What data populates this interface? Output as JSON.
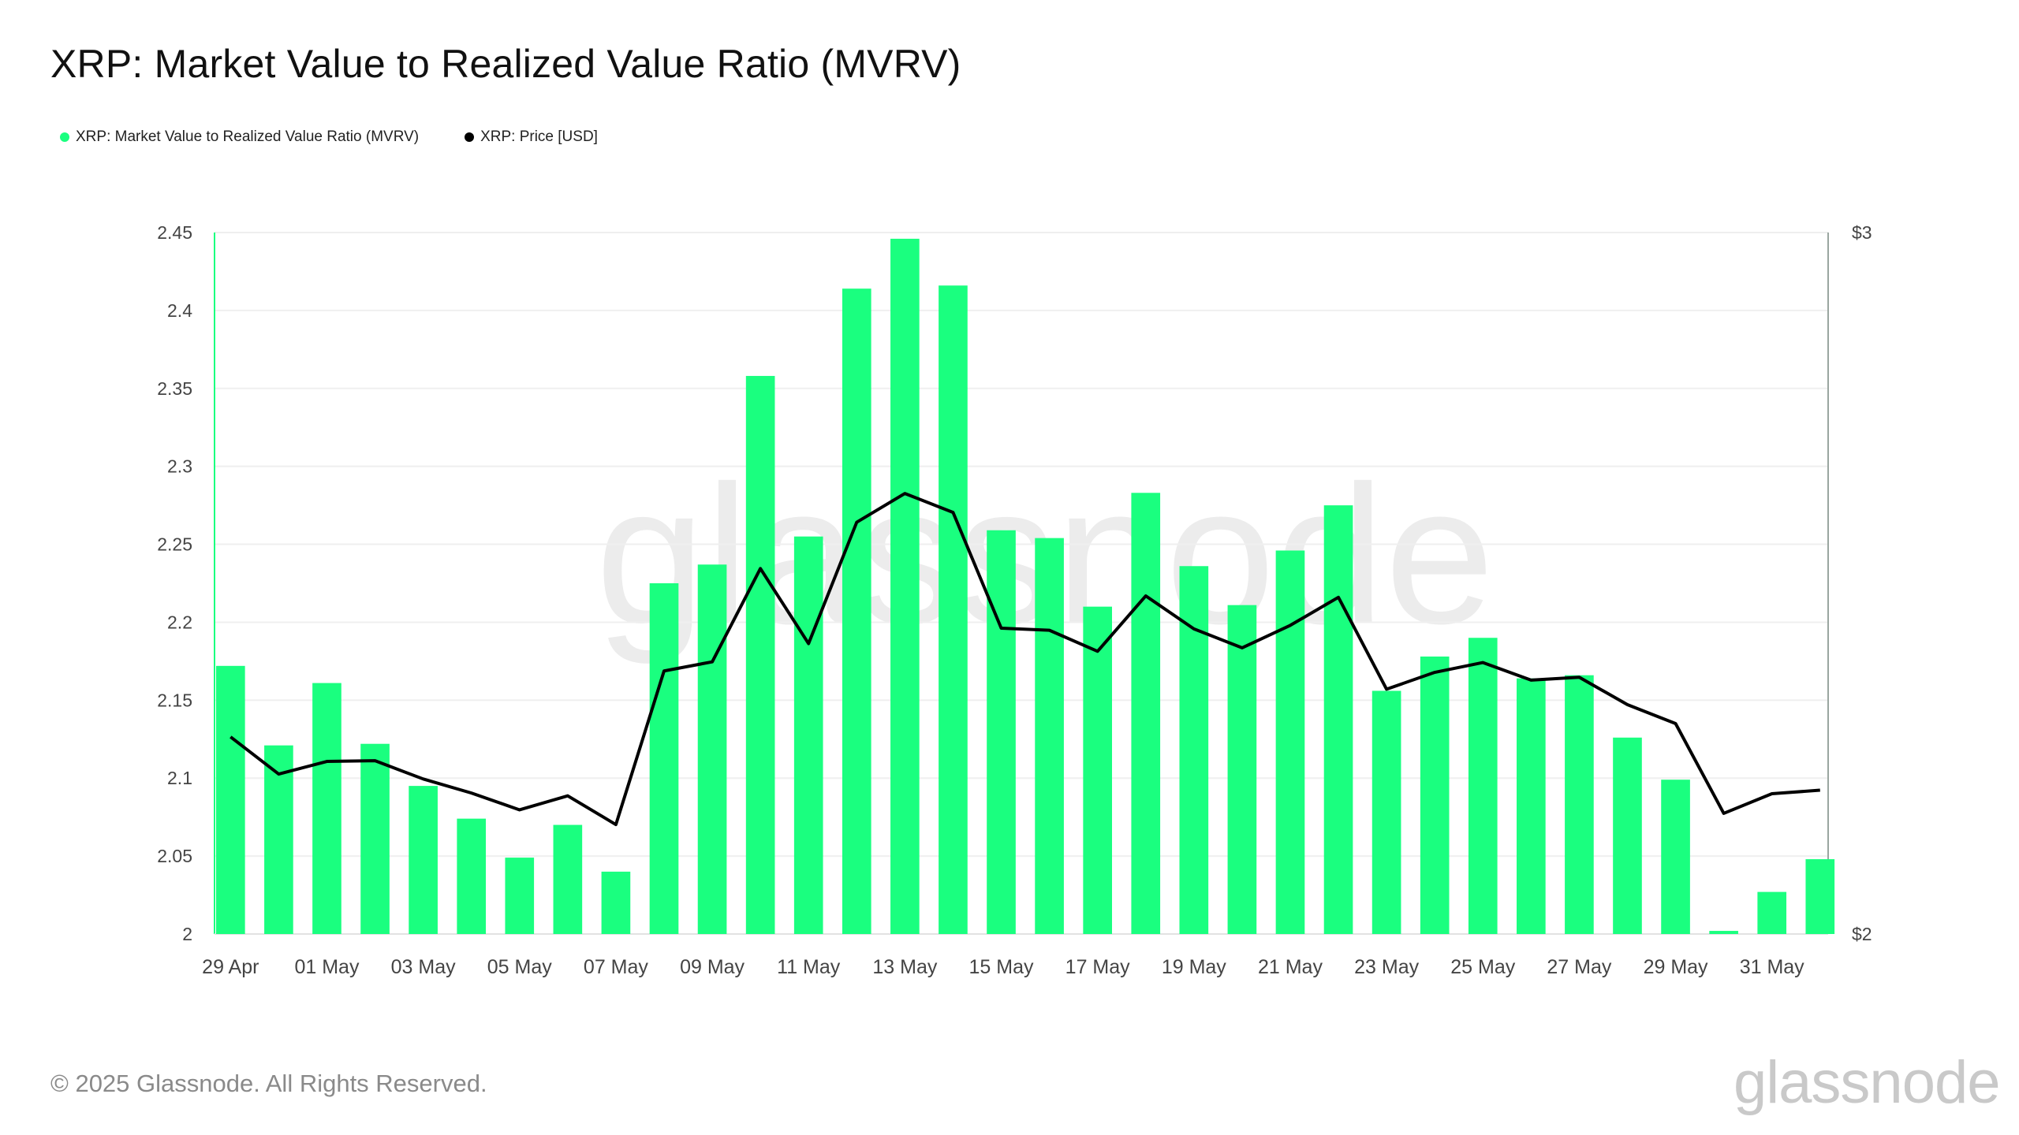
{
  "header": {
    "title": "XRP: Market Value to Realized Value Ratio (MVRV)"
  },
  "legend": [
    {
      "label": "XRP: Market Value to Realized Value Ratio (MVRV)",
      "color": "#1aff7f"
    },
    {
      "label": "XRP: Price [USD]",
      "color": "#000000"
    }
  ],
  "chart_data": {
    "type": "bar",
    "title": "XRP: Market Value to Realized Value Ratio (MVRV)",
    "xlabel": "",
    "ylabel": "",
    "dates": [
      "29 Apr",
      "30 Apr",
      "01 May",
      "02 May",
      "03 May",
      "04 May",
      "05 May",
      "06 May",
      "07 May",
      "08 May",
      "09 May",
      "10 May",
      "11 May",
      "12 May",
      "13 May",
      "14 May",
      "15 May",
      "16 May",
      "17 May",
      "18 May",
      "19 May",
      "20 May",
      "21 May",
      "22 May",
      "23 May",
      "24 May",
      "25 May",
      "26 May",
      "27 May",
      "28 May",
      "29 May",
      "30 May",
      "31 May",
      "01 Jun"
    ],
    "x_tick_labels": [
      "29 Apr",
      "01 May",
      "03 May",
      "05 May",
      "07 May",
      "09 May",
      "11 May",
      "13 May",
      "15 May",
      "17 May",
      "19 May",
      "21 May",
      "23 May",
      "25 May",
      "27 May",
      "29 May",
      "31 May"
    ],
    "series": [
      {
        "name": "XRP: Market Value to Realized Value Ratio (MVRV)",
        "type": "bar",
        "axis": "left",
        "color": "#1aff7f",
        "values": [
          2.172,
          2.121,
          2.161,
          2.122,
          2.095,
          2.074,
          2.049,
          2.07,
          2.04,
          2.225,
          2.237,
          2.358,
          2.255,
          2.414,
          2.446,
          2.416,
          2.259,
          2.254,
          2.21,
          2.283,
          2.236,
          2.211,
          2.246,
          2.275,
          2.156,
          2.178,
          2.19,
          2.164,
          2.166,
          2.126,
          2.099,
          2.002,
          2.027,
          2.048
        ]
      },
      {
        "name": "XRP: Price [USD]",
        "type": "line",
        "axis": "right",
        "color": "#000000",
        "values": [
          2.281,
          2.228,
          2.246,
          2.247,
          2.221,
          2.201,
          2.177,
          2.197,
          2.156,
          2.375,
          2.388,
          2.521,
          2.414,
          2.587,
          2.628,
          2.601,
          2.436,
          2.433,
          2.403,
          2.482,
          2.435,
          2.408,
          2.44,
          2.48,
          2.349,
          2.373,
          2.387,
          2.362,
          2.366,
          2.327,
          2.3,
          2.172,
          2.2,
          2.205
        ]
      }
    ],
    "y_left": {
      "range": [
        2,
        2.45
      ],
      "ticks": [
        "2",
        "2.05",
        "2.1",
        "2.15",
        "2.2",
        "2.25",
        "2.3",
        "2.35",
        "2.4",
        "2.45"
      ]
    },
    "y_right": {
      "range": [
        2,
        3
      ],
      "ticks": [
        "$2",
        "$3"
      ]
    },
    "grid": true,
    "legend_position": "top-left"
  },
  "watermark": {
    "text": "glassnode"
  },
  "footer": {
    "copyright": "© 2025 Glassnode. All Rights Reserved.",
    "brand": "glassnode"
  }
}
